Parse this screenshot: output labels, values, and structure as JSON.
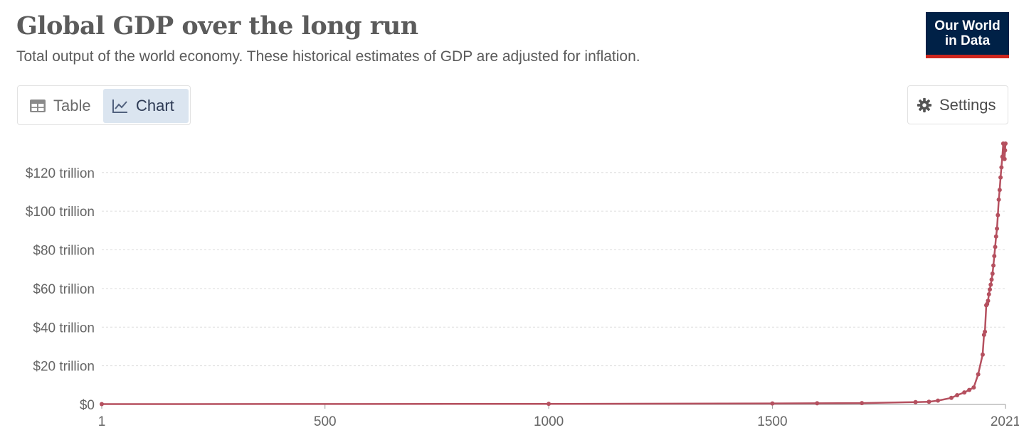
{
  "header": {
    "title": "Global GDP over the long run",
    "subtitle": "Total output of the world economy. These historical estimates of GDP are adjusted for inflation."
  },
  "logo": {
    "line1": "Our World",
    "line2": "in Data"
  },
  "tabs": [
    {
      "label": "Table",
      "icon": "table-icon",
      "active": false
    },
    {
      "label": "Chart",
      "icon": "line-chart-icon",
      "active": true
    }
  ],
  "settings": {
    "label": "Settings",
    "icon": "gear-icon"
  },
  "colors": {
    "series": "#b5505f",
    "grid": "#dddddd",
    "logo_bg": "#002147",
    "logo_accent": "#ce261e",
    "active_tab": "#dbe5f0"
  },
  "chart_data": {
    "type": "line",
    "title": "Global GDP over the long run",
    "xlabel": "",
    "ylabel": "",
    "xlim": [
      1,
      2021
    ],
    "ylim": [
      0,
      135
    ],
    "x_ticks": [
      1,
      500,
      1000,
      1500,
      2021
    ],
    "x_tick_labels": [
      "1",
      "500",
      "1000",
      "1500",
      "2021"
    ],
    "y_ticks": [
      0,
      20,
      40,
      60,
      80,
      100,
      120
    ],
    "y_tick_labels": [
      "$0",
      "$20 trillion",
      "$40 trillion",
      "$60 trillion",
      "$80 trillion",
      "$100 trillion",
      "$120 trillion"
    ],
    "grid": true,
    "series": [
      {
        "color": "#b5505f",
        "x": [
          1,
          1000,
          1500,
          1600,
          1700,
          1820,
          1850,
          1870,
          1900,
          1913,
          1929,
          1940,
          1950,
          1960,
          1970,
          1973,
          1975,
          1978,
          1980,
          1982,
          1984,
          1986,
          1988,
          1990,
          1992,
          1994,
          1996,
          1998,
          2000,
          2002,
          2004,
          2006,
          2008,
          2010,
          2012,
          2014,
          2016,
          2018,
          2019,
          2020,
          2021
        ],
        "y": [
          0.2,
          0.3,
          0.5,
          0.6,
          0.7,
          1.2,
          1.4,
          2.0,
          3.4,
          4.8,
          6.2,
          7.5,
          8.8,
          15.6,
          25.8,
          36.0,
          37.6,
          51.3,
          52.0,
          53.6,
          57.0,
          59.5,
          62.0,
          64.6,
          67.7,
          71.9,
          76.8,
          81.5,
          86.9,
          91.0,
          98.0,
          106.0,
          111.0,
          117.5,
          122.7,
          128.2,
          135.0,
          131.0,
          127.0,
          131.5,
          135.0
        ]
      }
    ]
  }
}
